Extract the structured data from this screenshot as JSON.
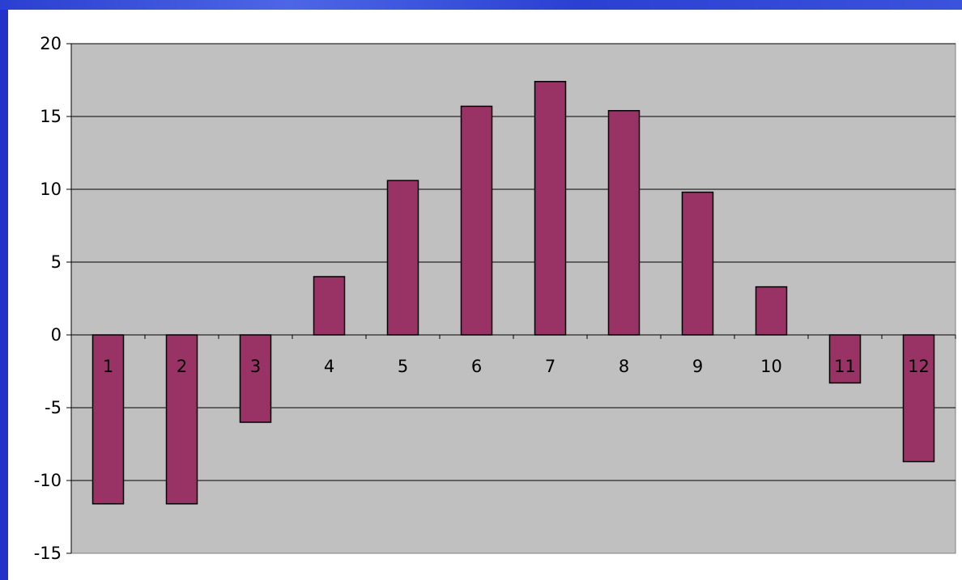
{
  "chart_data": {
    "type": "bar",
    "categories": [
      "1",
      "2",
      "3",
      "4",
      "5",
      "6",
      "7",
      "8",
      "9",
      "10",
      "11",
      "12"
    ],
    "values": [
      -11.6,
      -11.6,
      -6.0,
      4.0,
      10.6,
      15.7,
      17.4,
      15.4,
      9.8,
      3.3,
      -3.3,
      -8.7
    ],
    "title": "",
    "xlabel": "",
    "ylabel": "",
    "ylim": [
      -15,
      20
    ],
    "yticks": [
      "20",
      "15",
      "10",
      "5",
      "0",
      "-5",
      "-10",
      "-15"
    ],
    "grid": true,
    "legend": "none",
    "colors": {
      "bar_fill": "#993366",
      "bar_stroke": "#000000",
      "plot_area": "#c0c0c0",
      "gridline": "#000000",
      "slide_background": "#2b46d8"
    }
  }
}
